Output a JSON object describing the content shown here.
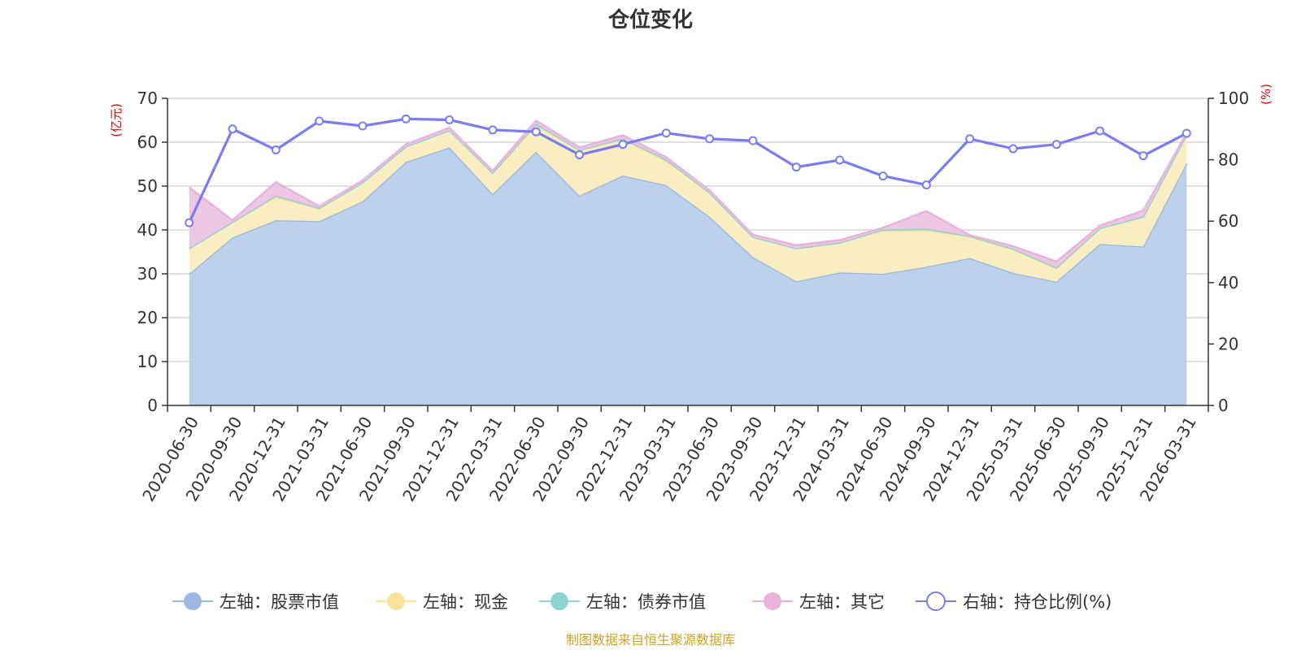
{
  "chart_data": {
    "type": "area",
    "title": "仓位变化",
    "left_axis_unit": "(亿元)",
    "right_axis_unit": "(%)",
    "left_ylim": [
      0,
      70
    ],
    "left_ticks": [
      0,
      10,
      20,
      30,
      40,
      50,
      60,
      70
    ],
    "right_ylim": [
      0,
      100
    ],
    "right_ticks": [
      0,
      20,
      40,
      60,
      80,
      100
    ],
    "grid": true,
    "legend_position": "bottom",
    "stacked": true,
    "categories": [
      "2020-06-30",
      "2020-09-30",
      "2020-12-31",
      "2021-03-31",
      "2021-06-30",
      "2021-09-30",
      "2021-12-31",
      "2022-03-31",
      "2022-06-30",
      "2022-09-30",
      "2022-12-31",
      "2023-03-31",
      "2023-06-30",
      "2023-09-30",
      "2023-12-31",
      "2024-03-31",
      "2024-06-30",
      "2024-09-30",
      "2024-12-31",
      "2025-03-31",
      "2025-06-30",
      "2025-09-30",
      "2025-12-31",
      "2026-03-31"
    ],
    "series": [
      {
        "name": "左轴：股票市值",
        "axis": "left",
        "kind": "area",
        "color": "#9db7e0",
        "fill": "#b6cdea",
        "values": [
          30,
          38.3,
          42.2,
          42,
          46.5,
          55.5,
          58.8,
          48.2,
          57.8,
          47.8,
          52.4,
          50.2,
          43,
          33.8,
          28.3,
          30.3,
          30,
          31.6,
          33.6,
          30.2,
          28.2,
          36.8,
          36.2,
          55.2
        ]
      },
      {
        "name": "左轴：现金",
        "axis": "left",
        "kind": "area",
        "color": "#f7e49a",
        "fill": "#f9edbf",
        "values": [
          5.8,
          3.5,
          5.3,
          2.8,
          4.3,
          3.5,
          3.9,
          4.8,
          6,
          10.4,
          8.2,
          5.5,
          5.5,
          4.6,
          7.5,
          6.8,
          9.8,
          8.3,
          4.8,
          5.3,
          3,
          3.6,
          6.8,
          6.5
        ]
      },
      {
        "name": "左轴：债券市值",
        "axis": "left",
        "kind": "area",
        "color": "#8fd3d0",
        "fill": "#9fdad7",
        "values": [
          0,
          0,
          0.3,
          0.2,
          0,
          0,
          0,
          0,
          0.4,
          0,
          0.2,
          0.4,
          0,
          0,
          0,
          0,
          0.3,
          0.4,
          0.2,
          0.2,
          0.2,
          0,
          0,
          0
        ]
      },
      {
        "name": "左轴：其它",
        "axis": "left",
        "kind": "area",
        "color": "#e8b4da",
        "fill": "#ecc4e3",
        "values": [
          13.9,
          0.4,
          3.1,
          0.4,
          0.5,
          0.5,
          0.6,
          0.5,
          0.7,
          0.6,
          0.8,
          0.5,
          0.5,
          0.5,
          0.7,
          0.6,
          0.4,
          4,
          0.2,
          0.6,
          1.4,
          0.6,
          1.4,
          0.4
        ]
      },
      {
        "name": "右轴：持仓比例(%)",
        "axis": "right",
        "kind": "line",
        "color": "#7a7cf0",
        "values": [
          59.5,
          90,
          83.2,
          92.6,
          91,
          93.3,
          93,
          89.7,
          89.1,
          81.6,
          85,
          88.7,
          86.8,
          86.2,
          77.6,
          79.9,
          74.7,
          71.8,
          86.8,
          83.6,
          85,
          89.4,
          81.3,
          88.6
        ]
      }
    ]
  },
  "source_note": "制图数据来自恒生聚源数据库"
}
